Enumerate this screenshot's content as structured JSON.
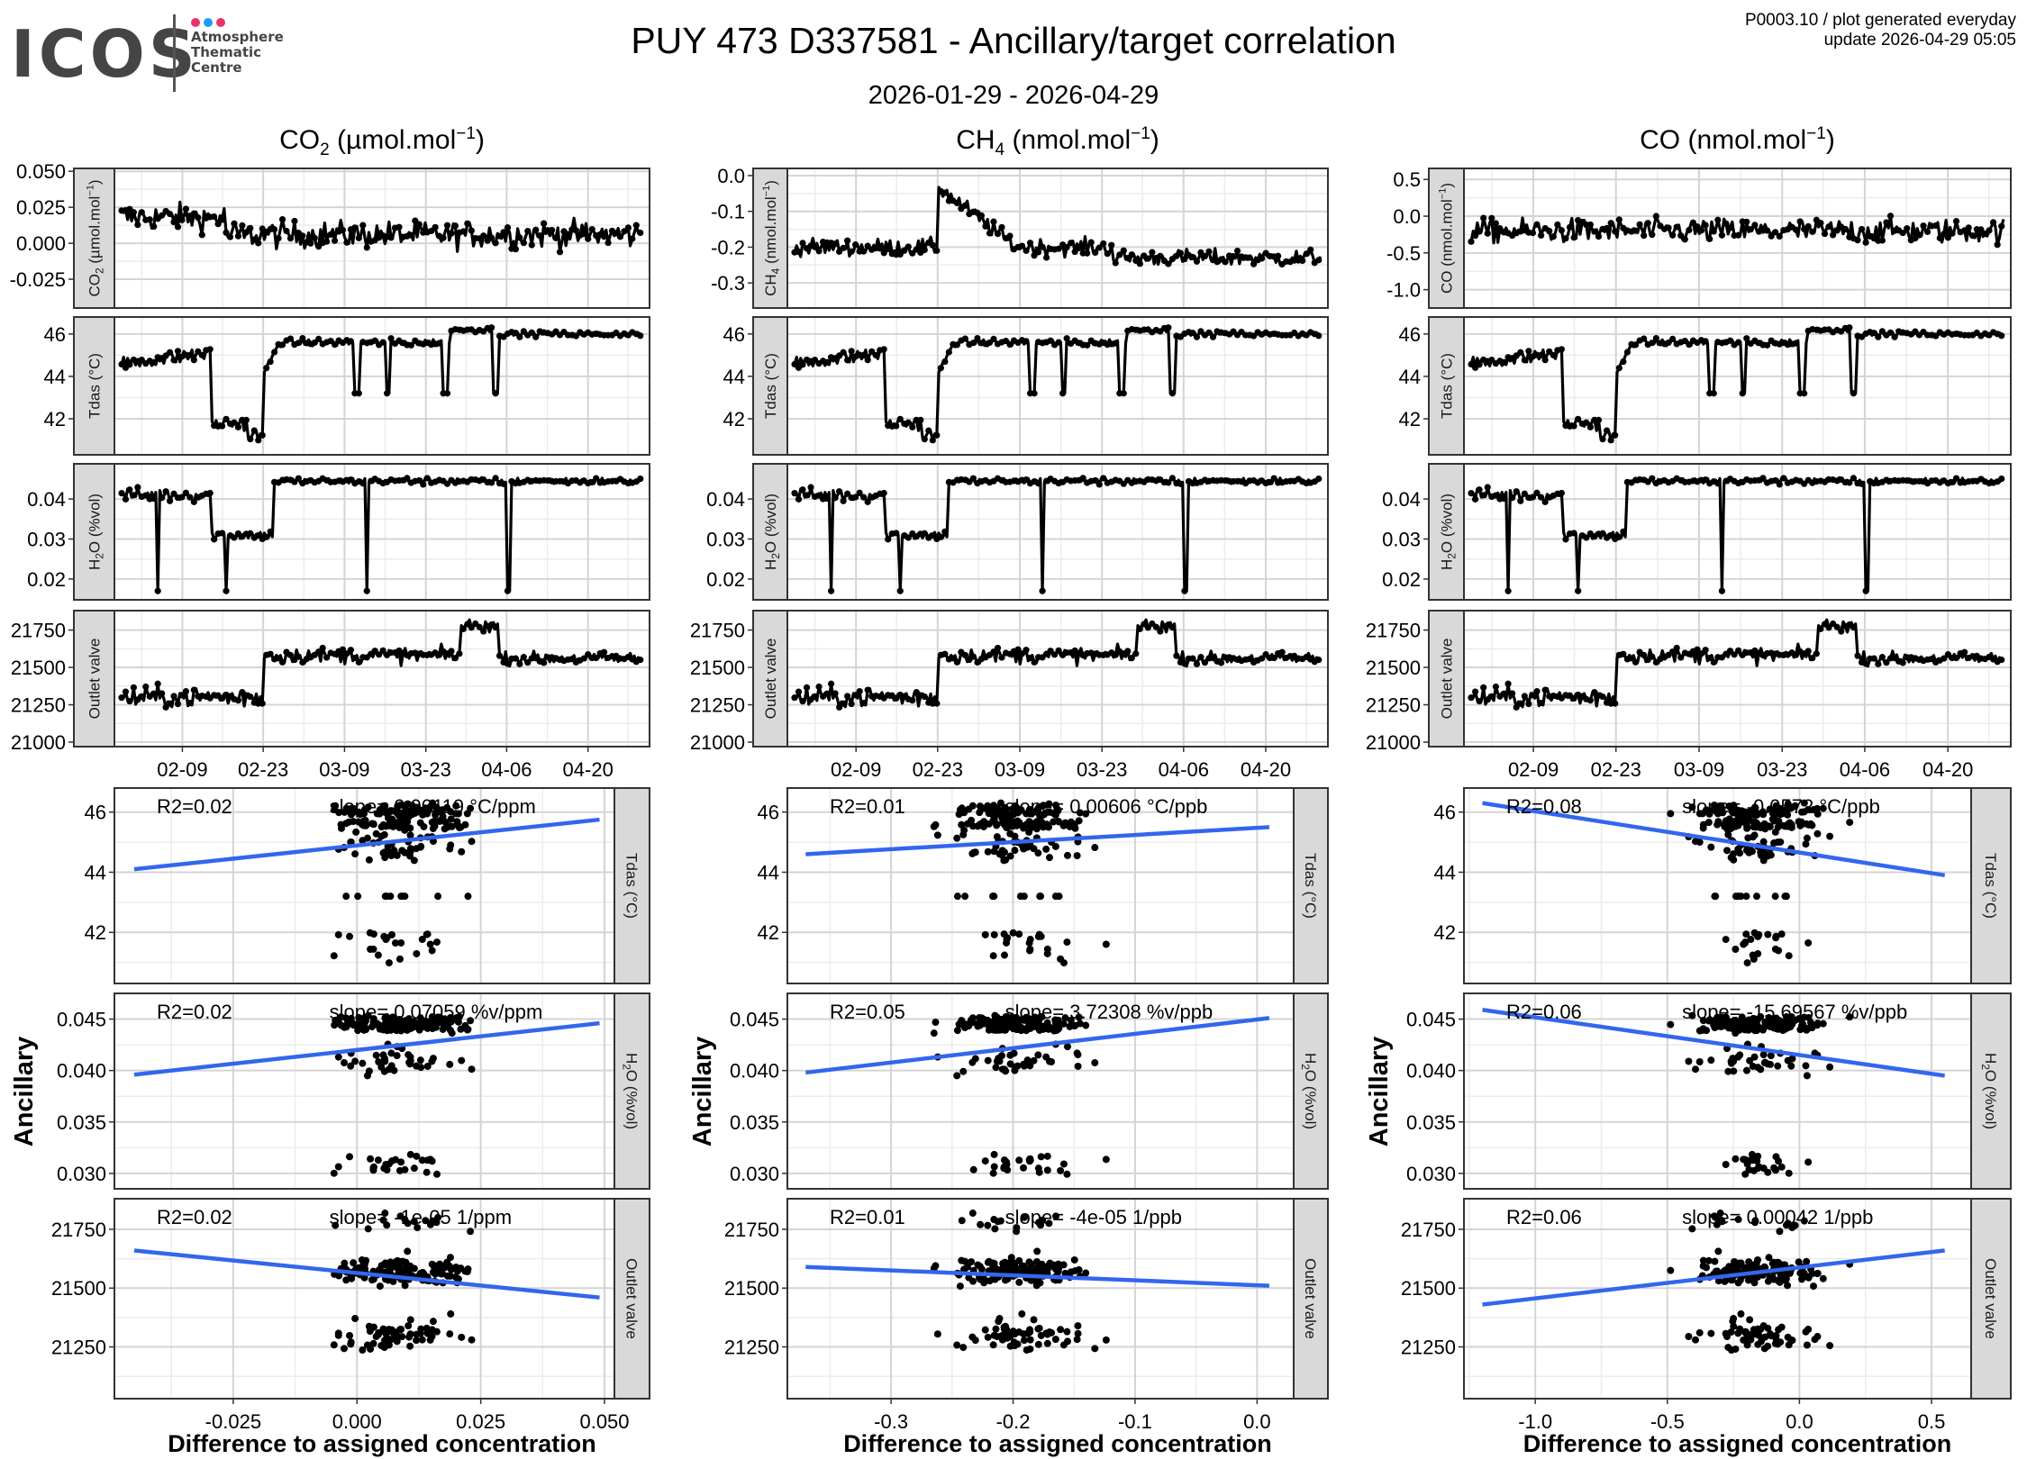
{
  "header": {
    "logo_main": "ICOS",
    "logo_sub": [
      "Atmosphere",
      "Thematic",
      "Centre"
    ],
    "logo_dot_colors": [
      "#e8336d",
      "#1e9cf0",
      "#e8336d"
    ],
    "title": "PUY 473 D337581 - Ancillary/target correlation",
    "subtitle": "2026-01-29 - 2026-04-29",
    "meta_line1": "P0003.10 / plot generated everyday",
    "meta_line2": "update  2026-04-29 05:05"
  },
  "columns": [
    {
      "species": "CO",
      "sub": "2",
      "unit_pre": " (µmol.mol",
      "unit_sup": "−1",
      "unit_post": ")"
    },
    {
      "species": "CH",
      "sub": "4",
      "unit_pre": " (nmol.mol",
      "unit_sup": "−1",
      "unit_post": ")"
    },
    {
      "species": "CO",
      "sub": "",
      "unit_pre": " (nmol.mol",
      "unit_sup": "−1",
      "unit_post": ")"
    }
  ],
  "axis_labels": {
    "y_scatter": "Ancillary",
    "x_scatter": "Difference to assigned concentration"
  },
  "colors": {
    "regression": "#3366ee",
    "strip": "#d9d9d9",
    "grid_major": "#d4d4d4",
    "grid_minor": "#ececec"
  },
  "chart_data": [
    {
      "type": "line",
      "panel": "timeseries",
      "column": 0,
      "x_ticks": [
        "02-09",
        "02-23",
        "03-09",
        "03-23",
        "04-06",
        "04-20"
      ],
      "rows": [
        {
          "strip": "CO2 (µmol.mol-1)",
          "ylim": [
            -0.045,
            0.052
          ],
          "ticks": [
            0.05,
            0.025,
            0.0,
            -0.025
          ],
          "tick_labels": [
            "0.050",
            "0.025",
            "0.000",
            "-0.025"
          ],
          "series": "co2"
        },
        {
          "strip": "Tdas (°C)",
          "ylim": [
            40.3,
            46.8
          ],
          "ticks": [
            46,
            44,
            42
          ],
          "tick_labels": [
            "46",
            "44",
            "42"
          ],
          "series": "tdas"
        },
        {
          "strip": "H2O (%vol)",
          "ylim": [
            0.0148,
            0.0488
          ],
          "ticks": [
            0.04,
            0.03,
            0.02
          ],
          "tick_labels": [
            "0.04",
            "0.03",
            "0.02"
          ],
          "series": "h2o"
        },
        {
          "strip": "Outlet valve",
          "ylim": [
            20970,
            21880
          ],
          "ticks": [
            21750,
            21500,
            21250,
            21000
          ],
          "tick_labels": [
            "21750",
            "21500",
            "21250",
            "21000"
          ],
          "series": "valve"
        }
      ]
    },
    {
      "type": "line",
      "panel": "timeseries",
      "column": 1,
      "x_ticks": [
        "02-09",
        "02-23",
        "03-09",
        "03-23",
        "04-06",
        "04-20"
      ],
      "rows": [
        {
          "strip": "CH4 (nmol.mol-1)",
          "ylim": [
            -0.37,
            0.02
          ],
          "ticks": [
            0.0,
            -0.1,
            -0.2,
            -0.3
          ],
          "tick_labels": [
            "0.0",
            "-0.1",
            "-0.2",
            "-0.3"
          ],
          "series": "ch4"
        },
        {
          "strip": "Tdas (°C)",
          "ylim": [
            40.3,
            46.8
          ],
          "ticks": [
            46,
            44,
            42
          ],
          "tick_labels": [
            "46",
            "44",
            "42"
          ],
          "series": "tdas"
        },
        {
          "strip": "H2O (%vol)",
          "ylim": [
            0.0148,
            0.0488
          ],
          "ticks": [
            0.04,
            0.03,
            0.02
          ],
          "tick_labels": [
            "0.04",
            "0.03",
            "0.02"
          ],
          "series": "h2o"
        },
        {
          "strip": "Outlet valve",
          "ylim": [
            20970,
            21880
          ],
          "ticks": [
            21750,
            21500,
            21250,
            21000
          ],
          "tick_labels": [
            "21750",
            "21500",
            "21250",
            "21000"
          ],
          "series": "valve"
        }
      ]
    },
    {
      "type": "line",
      "panel": "timeseries",
      "column": 2,
      "x_ticks": [
        "02-09",
        "02-23",
        "03-09",
        "03-23",
        "04-06",
        "04-20"
      ],
      "rows": [
        {
          "strip": "CO (nmol.mol-1)",
          "ylim": [
            -1.25,
            0.65
          ],
          "ticks": [
            0.5,
            0.0,
            -0.5,
            -1.0
          ],
          "tick_labels": [
            "0.5",
            "0.0",
            "-0.5",
            "-1.0"
          ],
          "series": "co"
        },
        {
          "strip": "Tdas (°C)",
          "ylim": [
            40.3,
            46.8
          ],
          "ticks": [
            46,
            44,
            42
          ],
          "tick_labels": [
            "46",
            "44",
            "42"
          ],
          "series": "tdas"
        },
        {
          "strip": "H2O (%vol)",
          "ylim": [
            0.0148,
            0.0488
          ],
          "ticks": [
            0.04,
            0.03,
            0.02
          ],
          "tick_labels": [
            "0.04",
            "0.03",
            "0.02"
          ],
          "series": "h2o"
        },
        {
          "strip": "Outlet valve",
          "ylim": [
            20970,
            21880
          ],
          "ticks": [
            21750,
            21500,
            21250,
            21000
          ],
          "tick_labels": [
            "21750",
            "21500",
            "21250",
            "21000"
          ],
          "series": "valve"
        }
      ]
    },
    {
      "type": "scatter",
      "panel": "correlation",
      "column": 0,
      "xlim": [
        -0.049,
        0.052
      ],
      "x_ticks": [
        -0.025,
        0.0,
        0.025,
        0.05
      ],
      "x_tick_labels": [
        "-0.025",
        "0.000",
        "0.025",
        "0.050"
      ],
      "rows": [
        {
          "strip": "Tdas (°C)",
          "ylim": [
            40.3,
            46.8
          ],
          "ticks": [
            46,
            44,
            42
          ],
          "tick_labels": [
            "46",
            "44",
            "42"
          ],
          "r2": "R2=0.02",
          "slope": "slope= 0.00119 °C/ppm",
          "fit": [
            [
              -0.045,
              44.1
            ],
            [
              0.049,
              45.75
            ]
          ]
        },
        {
          "strip": "H2O (%vol)",
          "ylim": [
            0.0285,
            0.0475
          ],
          "ticks": [
            0.045,
            0.04,
            0.035,
            0.03
          ],
          "tick_labels": [
            "0.045",
            "0.040",
            "0.035",
            "0.030"
          ],
          "r2": "R2=0.02",
          "slope": "slope= 0.07059 %v/ppm",
          "fit": [
            [
              -0.045,
              0.0396
            ],
            [
              0.049,
              0.0446
            ]
          ]
        },
        {
          "strip": "Outlet valve",
          "ylim": [
            21030,
            21880
          ],
          "ticks": [
            21750,
            21500,
            21250
          ],
          "tick_labels": [
            "21750",
            "21500",
            "21250"
          ],
          "r2": "R2=0.02",
          "slope": "slope= -1e-05 1/ppm",
          "fit": [
            [
              -0.045,
              21660
            ],
            [
              0.049,
              21460
            ]
          ]
        }
      ]
    },
    {
      "type": "scatter",
      "panel": "correlation",
      "column": 1,
      "xlim": [
        -0.385,
        0.03
      ],
      "x_ticks": [
        -0.3,
        -0.2,
        -0.1,
        0.0
      ],
      "x_tick_labels": [
        "-0.3",
        "-0.2",
        "-0.1",
        "0.0"
      ],
      "rows": [
        {
          "strip": "Tdas (°C)",
          "ylim": [
            40.3,
            46.8
          ],
          "ticks": [
            46,
            44,
            42
          ],
          "tick_labels": [
            "46",
            "44",
            "42"
          ],
          "r2": "R2=0.01",
          "slope": "slope= 0.00606 °C/ppb",
          "fit": [
            [
              -0.37,
              44.6
            ],
            [
              0.01,
              45.5
            ]
          ]
        },
        {
          "strip": "H2O (%vol)",
          "ylim": [
            0.0285,
            0.0475
          ],
          "ticks": [
            0.045,
            0.04,
            0.035,
            0.03
          ],
          "tick_labels": [
            "0.045",
            "0.040",
            "0.035",
            "0.030"
          ],
          "r2": "R2=0.05",
          "slope": "slope= 3.72308 %v/ppb",
          "fit": [
            [
              -0.37,
              0.0398
            ],
            [
              0.01,
              0.0451
            ]
          ]
        },
        {
          "strip": "Outlet valve",
          "ylim": [
            21030,
            21880
          ],
          "ticks": [
            21750,
            21500,
            21250
          ],
          "tick_labels": [
            "21750",
            "21500",
            "21250"
          ],
          "r2": "R2=0.01",
          "slope": "slope= -4e-05 1/ppb",
          "fit": [
            [
              -0.37,
              21590
            ],
            [
              0.01,
              21510
            ]
          ]
        }
      ]
    },
    {
      "type": "scatter",
      "panel": "correlation",
      "column": 2,
      "xlim": [
        -1.27,
        0.65
      ],
      "x_ticks": [
        -1.0,
        -0.5,
        0.0,
        0.5
      ],
      "x_tick_labels": [
        "-1.0",
        "-0.5",
        "0.0",
        "0.5"
      ],
      "rows": [
        {
          "strip": "Tdas (°C)",
          "ylim": [
            40.3,
            46.8
          ],
          "ticks": [
            46,
            44,
            42
          ],
          "tick_labels": [
            "46",
            "44",
            "42"
          ],
          "r2": "R2=0.08",
          "slope": "slope= -0.0572 °C/ppb",
          "fit": [
            [
              -1.2,
              46.3
            ],
            [
              0.55,
              43.9
            ]
          ]
        },
        {
          "strip": "H2O (%vol)",
          "ylim": [
            0.0285,
            0.0475
          ],
          "ticks": [
            0.045,
            0.04,
            0.035,
            0.03
          ],
          "tick_labels": [
            "0.045",
            "0.040",
            "0.035",
            "0.030"
          ],
          "r2": "R2=0.06",
          "slope": "slope= -15.69567 %v/ppb",
          "fit": [
            [
              -1.2,
              0.0459
            ],
            [
              0.55,
              0.0395
            ]
          ]
        },
        {
          "strip": "Outlet valve",
          "ylim": [
            21030,
            21880
          ],
          "ticks": [
            21750,
            21500,
            21250
          ],
          "tick_labels": [
            "21750",
            "21500",
            "21250"
          ],
          "r2": "R2=0.06",
          "slope": "slope= 0.00042 1/ppb",
          "fit": [
            [
              -1.2,
              21430
            ],
            [
              0.55,
              21660
            ]
          ]
        }
      ]
    }
  ]
}
